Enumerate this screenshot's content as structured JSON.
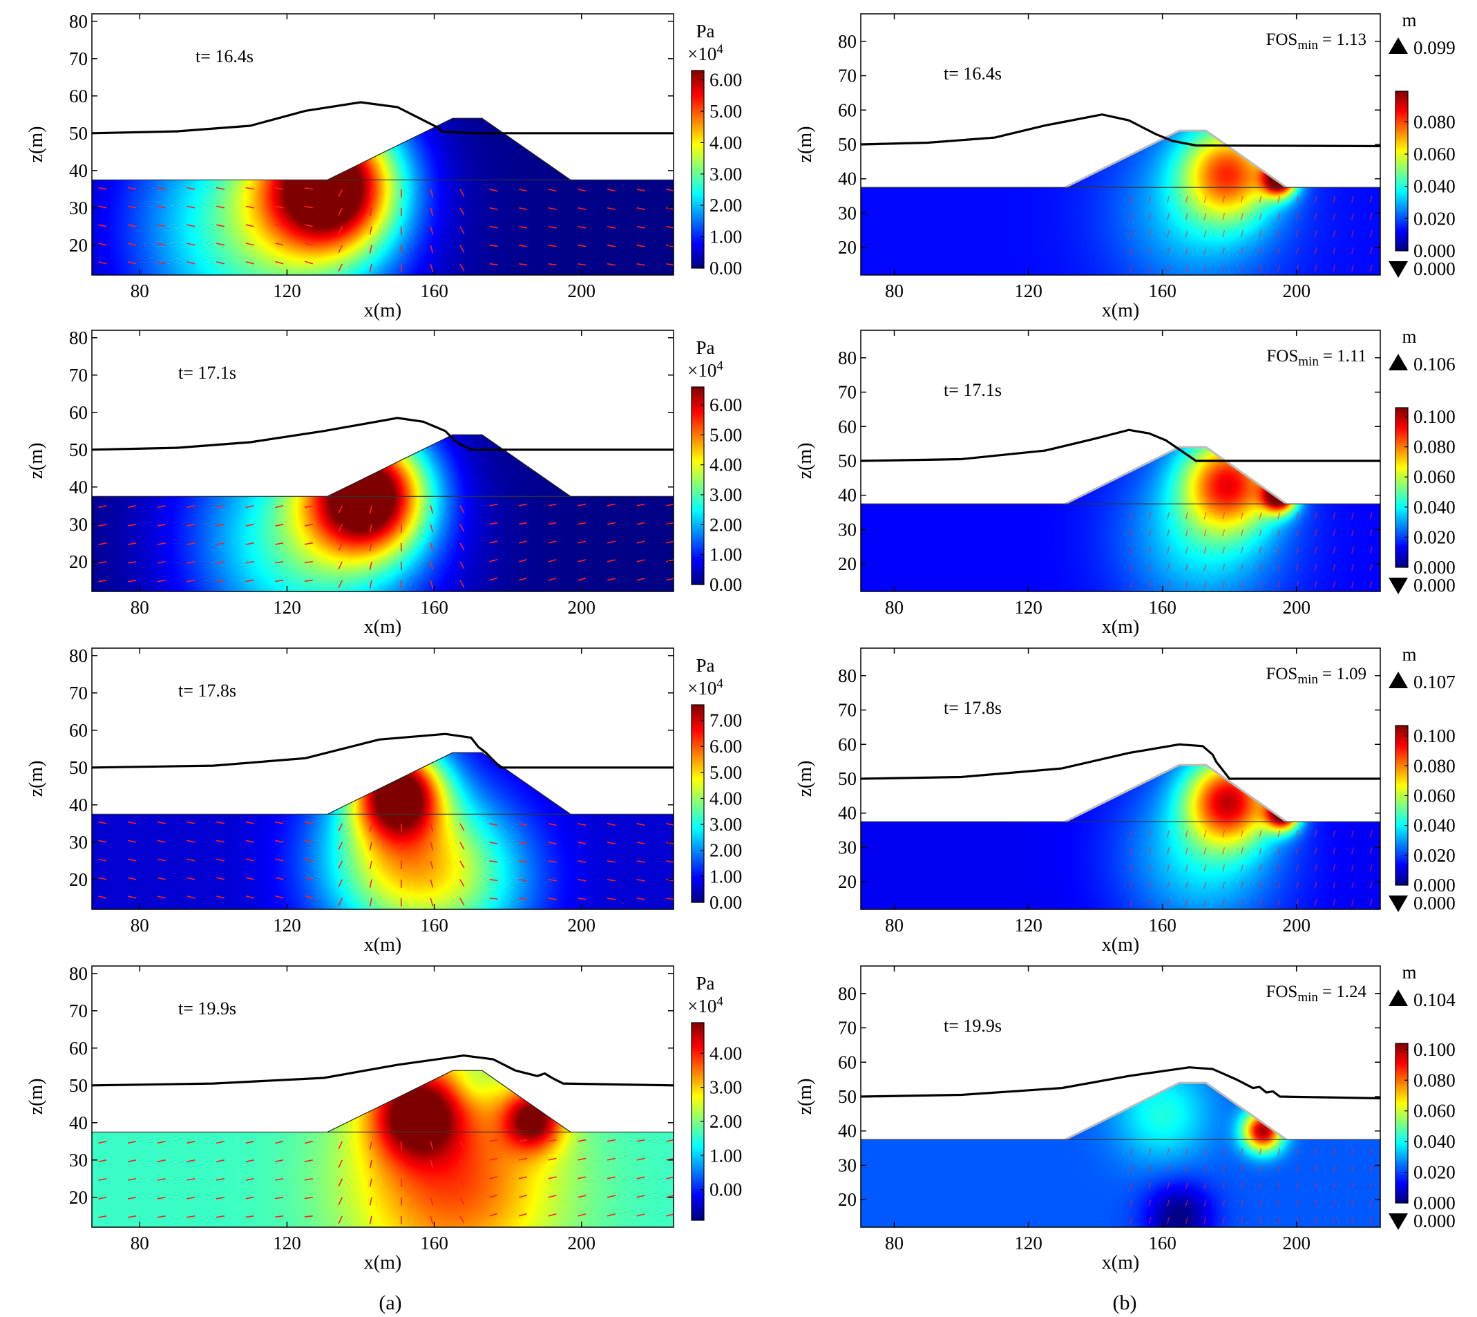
{
  "colors": {
    "jet": [
      "#00007f",
      "#0000ff",
      "#007fff",
      "#00ffff",
      "#7fff7f",
      "#ffff00",
      "#ff7f00",
      "#ff0000",
      "#7f0000"
    ],
    "arrow": "#ff2020",
    "wave": "#000000",
    "frame": "#000000"
  },
  "column_labels": [
    "(a)",
    "(b)"
  ],
  "chart_data": [
    {
      "type": "heatmap",
      "panel": "a1",
      "title": "t= 16.4s",
      "xlabel": "x(m)",
      "ylabel": "z(m)",
      "xlim": [
        67,
        225
      ],
      "ylim": [
        12,
        82
      ],
      "xticks": [
        80,
        120,
        160,
        200
      ],
      "yticks": [
        20,
        30,
        40,
        50,
        60,
        70,
        80
      ],
      "colorbar": {
        "unit": "Pa",
        "scale": "×10^4",
        "min": 0,
        "max": 6.3,
        "ticks": [
          "0.00",
          "1.00",
          "2.00",
          "3.00",
          "4.00",
          "5.00",
          "6.00"
        ],
        "tick_values": [
          0,
          1,
          2,
          3,
          4,
          5,
          6
        ]
      },
      "wave_profile": [
        [
          67,
          50
        ],
        [
          90,
          50.5
        ],
        [
          110,
          52
        ],
        [
          125,
          56
        ],
        [
          140,
          58.3
        ],
        [
          150,
          57
        ],
        [
          158,
          53
        ],
        [
          161,
          51.5
        ],
        [
          162,
          50.5
        ],
        [
          170,
          50
        ],
        [
          225,
          50
        ]
      ],
      "field": {
        "type": "pressure",
        "background": 0.05,
        "hotspots": [
          {
            "x": 132,
            "z": 36,
            "v": 6.0,
            "r": 18
          },
          {
            "x": 112,
            "z": 25,
            "v": 3.0,
            "r": 35
          }
        ]
      }
    },
    {
      "type": "heatmap",
      "panel": "a2",
      "title": "t= 17.1s",
      "xlabel": "x(m)",
      "ylabel": "z(m)",
      "xlim": [
        67,
        225
      ],
      "ylim": [
        12,
        82
      ],
      "xticks": [
        80,
        120,
        160,
        200
      ],
      "yticks": [
        20,
        30,
        40,
        50,
        60,
        70,
        80
      ],
      "colorbar": {
        "unit": "Pa",
        "scale": "×10^4",
        "min": 0,
        "max": 6.6,
        "ticks": [
          "0.00",
          "1.00",
          "2.00",
          "3.00",
          "4.00",
          "5.00",
          "6.00"
        ],
        "tick_values": [
          0,
          1,
          2,
          3,
          4,
          5,
          6
        ]
      },
      "wave_profile": [
        [
          67,
          50
        ],
        [
          90,
          50.5
        ],
        [
          110,
          52
        ],
        [
          130,
          55
        ],
        [
          150,
          58.5
        ],
        [
          157,
          57.5
        ],
        [
          163,
          55
        ],
        [
          166,
          52
        ],
        [
          170,
          50
        ],
        [
          225,
          50
        ]
      ],
      "field": {
        "type": "pressure",
        "background": 0.05,
        "hotspots": [
          {
            "x": 142,
            "z": 38,
            "v": 6.2,
            "r": 16
          },
          {
            "x": 125,
            "z": 26,
            "v": 3.0,
            "r": 32
          }
        ]
      }
    },
    {
      "type": "heatmap",
      "panel": "a3",
      "title": "t= 17.8s",
      "xlabel": "x(m)",
      "ylabel": "z(m)",
      "xlim": [
        67,
        225
      ],
      "ylim": [
        12,
        82
      ],
      "xticks": [
        80,
        120,
        160,
        200
      ],
      "yticks": [
        20,
        30,
        40,
        50,
        60,
        70,
        80
      ],
      "colorbar": {
        "unit": "Pa",
        "scale": "×10^4",
        "min": 0,
        "max": 7.6,
        "ticks": [
          "0.00",
          "1.00",
          "2.00",
          "3.00",
          "4.00",
          "5.00",
          "6.00",
          "7.00"
        ],
        "tick_values": [
          0,
          1,
          2,
          3,
          4,
          5,
          6,
          7
        ]
      },
      "wave_profile": [
        [
          67,
          50
        ],
        [
          100,
          50.5
        ],
        [
          125,
          52.5
        ],
        [
          145,
          57.5
        ],
        [
          163,
          59
        ],
        [
          170,
          58
        ],
        [
          172,
          55.5
        ],
        [
          174,
          54
        ],
        [
          178,
          50
        ],
        [
          225,
          50
        ]
      ],
      "field": {
        "type": "pressure",
        "background": 0.6,
        "hotspots": [
          {
            "x": 150,
            "z": 44,
            "v": 7.0,
            "r": 12
          },
          {
            "x": 150,
            "z": 25,
            "v": 4.5,
            "r": 22
          },
          {
            "x": 170,
            "z": 20,
            "v": 2.5,
            "r": 20
          }
        ]
      }
    },
    {
      "type": "heatmap",
      "panel": "a4",
      "title": "t= 19.9s",
      "xlabel": "x(m)",
      "ylabel": "z(m)",
      "xlim": [
        67,
        225
      ],
      "ylim": [
        12,
        82
      ],
      "xticks": [
        80,
        120,
        160,
        200
      ],
      "yticks": [
        20,
        30,
        40,
        50,
        60,
        70,
        80
      ],
      "colorbar": {
        "unit": "Pa",
        "scale": "×10^4",
        "min": -0.9,
        "max": 4.9,
        "ticks": [
          "0.00",
          "1.00",
          "2.00",
          "3.00",
          "4.00"
        ],
        "tick_values": [
          0,
          1,
          2,
          3,
          4
        ]
      },
      "wave_profile": [
        [
          67,
          50
        ],
        [
          100,
          50.5
        ],
        [
          130,
          52
        ],
        [
          150,
          55.5
        ],
        [
          168,
          58
        ],
        [
          176,
          57
        ],
        [
          182,
          54
        ],
        [
          186,
          53
        ],
        [
          188,
          52.5
        ],
        [
          190,
          53.2
        ],
        [
          192,
          52
        ],
        [
          195,
          50.5
        ],
        [
          225,
          50
        ]
      ],
      "field": {
        "type": "pressure",
        "background": 1.6,
        "hotspots": [
          {
            "x": 155,
            "z": 43,
            "v": 4.6,
            "r": 12
          },
          {
            "x": 187,
            "z": 41,
            "v": 4.5,
            "r": 8
          },
          {
            "x": 165,
            "z": 25,
            "v": 3.8,
            "r": 28
          },
          {
            "x": 170,
            "z": 50,
            "v": 1.3,
            "r": 5
          }
        ]
      }
    },
    {
      "type": "heatmap",
      "panel": "b1",
      "title": "t= 16.4s",
      "fos_label": "FOS",
      "fos_sub": "min",
      "fos_value": "= 1.13",
      "xlabel": "x(m)",
      "ylabel": "z(m)",
      "xlim": [
        70,
        225
      ],
      "ylim": [
        12,
        88
      ],
      "xticks": [
        80,
        120,
        160,
        200
      ],
      "yticks": [
        20,
        30,
        40,
        50,
        60,
        70,
        80
      ],
      "colorbar": {
        "unit": "m",
        "max_label": "0.099",
        "min_label": "0.000",
        "min": 0,
        "max": 0.099,
        "ticks": [
          "0.000",
          "0.020",
          "0.040",
          "0.060",
          "0.080"
        ],
        "tick_values": [
          0,
          0.02,
          0.04,
          0.06,
          0.08
        ]
      },
      "wave_profile": [
        [
          70,
          50
        ],
        [
          90,
          50.5
        ],
        [
          110,
          52
        ],
        [
          125,
          55.5
        ],
        [
          142,
          58.7
        ],
        [
          150,
          57
        ],
        [
          158,
          53
        ],
        [
          163,
          51
        ],
        [
          170,
          49.7
        ],
        [
          225,
          49.5
        ]
      ],
      "field": {
        "type": "displacement",
        "background": 0.013,
        "hotspots": [
          {
            "x": 180,
            "z": 42,
            "v": 0.07,
            "r": 14
          },
          {
            "x": 195,
            "z": 40,
            "v": 0.095,
            "r": 5
          },
          {
            "x": 170,
            "z": 30,
            "v": 0.032,
            "r": 25
          }
        ]
      }
    },
    {
      "type": "heatmap",
      "panel": "b2",
      "title": "t= 17.1s",
      "fos_label": "FOS",
      "fos_sub": "min",
      "fos_value": "= 1.11",
      "xlabel": "x(m)",
      "ylabel": "z(m)",
      "xlim": [
        70,
        225
      ],
      "ylim": [
        12,
        88
      ],
      "xticks": [
        80,
        120,
        160,
        200
      ],
      "yticks": [
        20,
        30,
        40,
        50,
        60,
        70,
        80
      ],
      "colorbar": {
        "unit": "m",
        "max_label": "0.106",
        "min_label": "0.000",
        "min": 0,
        "max": 0.106,
        "ticks": [
          "0.000",
          "0.020",
          "0.040",
          "0.060",
          "0.080",
          "0.100"
        ],
        "tick_values": [
          0,
          0.02,
          0.04,
          0.06,
          0.08,
          0.1
        ]
      },
      "wave_profile": [
        [
          70,
          50
        ],
        [
          100,
          50.5
        ],
        [
          125,
          53
        ],
        [
          140,
          56.5
        ],
        [
          150,
          59
        ],
        [
          156,
          58
        ],
        [
          161,
          56
        ],
        [
          164,
          54
        ],
        [
          170,
          50
        ],
        [
          225,
          50
        ]
      ],
      "field": {
        "type": "displacement",
        "background": 0.013,
        "hotspots": [
          {
            "x": 180,
            "z": 44,
            "v": 0.08,
            "r": 14
          },
          {
            "x": 195,
            "z": 40,
            "v": 0.1,
            "r": 5
          },
          {
            "x": 172,
            "z": 28,
            "v": 0.038,
            "r": 24
          }
        ]
      }
    },
    {
      "type": "heatmap",
      "panel": "b3",
      "title": "t= 17.8s",
      "fos_label": "FOS",
      "fos_sub": "min",
      "fos_value": "= 1.09",
      "xlabel": "x(m)",
      "ylabel": "z(m)",
      "xlim": [
        70,
        225
      ],
      "ylim": [
        12,
        88
      ],
      "xticks": [
        80,
        120,
        160,
        200
      ],
      "yticks": [
        20,
        30,
        40,
        50,
        60,
        70,
        80
      ],
      "colorbar": {
        "unit": "m",
        "max_label": "0.107",
        "min_label": "0.000",
        "min": 0,
        "max": 0.107,
        "ticks": [
          "0.000",
          "0.020",
          "0.040",
          "0.060",
          "0.080",
          "0.100"
        ],
        "tick_values": [
          0,
          0.02,
          0.04,
          0.06,
          0.08,
          0.1
        ]
      },
      "wave_profile": [
        [
          70,
          50
        ],
        [
          100,
          50.5
        ],
        [
          130,
          53
        ],
        [
          150,
          57.5
        ],
        [
          165,
          60
        ],
        [
          172,
          59.5
        ],
        [
          175,
          57
        ],
        [
          176,
          55
        ],
        [
          180,
          50
        ],
        [
          225,
          50
        ]
      ],
      "field": {
        "type": "displacement",
        "background": 0.012,
        "hotspots": [
          {
            "x": 180,
            "z": 44,
            "v": 0.085,
            "r": 13
          },
          {
            "x": 196,
            "z": 40,
            "v": 0.1,
            "r": 5
          },
          {
            "x": 172,
            "z": 28,
            "v": 0.038,
            "r": 24
          }
        ]
      }
    },
    {
      "type": "heatmap",
      "panel": "b4",
      "title": "t= 19.9s",
      "fos_label": "FOS",
      "fos_sub": "min",
      "fos_value": "= 1.24",
      "xlabel": "x(m)",
      "ylabel": "z(m)",
      "xlim": [
        70,
        225
      ],
      "ylim": [
        12,
        88
      ],
      "xticks": [
        80,
        120,
        160,
        200
      ],
      "yticks": [
        20,
        30,
        40,
        50,
        60,
        70,
        80
      ],
      "colorbar": {
        "unit": "m",
        "max_label": "0.104",
        "min_label": "0.000",
        "min": 0,
        "max": 0.104,
        "ticks": [
          "0.000",
          "0.020",
          "0.040",
          "0.060",
          "0.080",
          "0.100"
        ],
        "tick_values": [
          0,
          0.02,
          0.04,
          0.06,
          0.08,
          0.1
        ]
      },
      "wave_profile": [
        [
          70,
          50
        ],
        [
          100,
          50.5
        ],
        [
          130,
          52.5
        ],
        [
          150,
          56
        ],
        [
          168,
          58.5
        ],
        [
          175,
          58
        ],
        [
          182,
          55
        ],
        [
          187,
          52.5
        ],
        [
          189,
          52.8
        ],
        [
          191,
          51.2
        ],
        [
          193,
          51.5
        ],
        [
          195,
          50
        ],
        [
          225,
          49.5
        ]
      ],
      "field": {
        "type": "displacement",
        "background": 0.022,
        "hotspots": [
          {
            "x": 190,
            "z": 40,
            "v": 0.1,
            "r": 6
          },
          {
            "x": 160,
            "z": 45,
            "v": 0.042,
            "r": 14
          },
          {
            "x": 165,
            "z": 15,
            "v": 0.0,
            "r": 10
          }
        ]
      }
    }
  ]
}
